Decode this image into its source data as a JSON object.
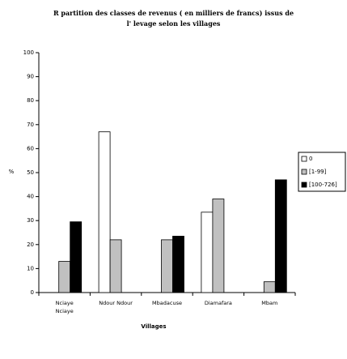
{
  "chart_data": {
    "type": "bar",
    "title": "R partition des classes de revenus ( en milliers de francs) issus de\nl' levage selon les villages",
    "x_label": "Villages",
    "y_label": "%",
    "categories": [
      "Nciaye\nNciaye",
      "Ndour Ndour",
      "Mbadacuse",
      "Diamafara",
      "Mbam"
    ],
    "series": [
      {
        "name": "0",
        "color": "#ffffff",
        "values": [
          0,
          67,
          0,
          33.5,
          0
        ]
      },
      {
        "name": "[1-99]",
        "color": "#c0c0c0",
        "values": [
          13,
          22,
          22,
          39,
          4.5
        ]
      },
      {
        "name": "[100-726]",
        "color": "#000000",
        "values": [
          29.5,
          0,
          23.5,
          0,
          47
        ]
      }
    ],
    "ylim": [
      0,
      100
    ],
    "yticks": [
      0,
      10,
      20,
      30,
      40,
      50,
      60,
      70,
      80,
      90,
      100
    ],
    "grid": false
  }
}
